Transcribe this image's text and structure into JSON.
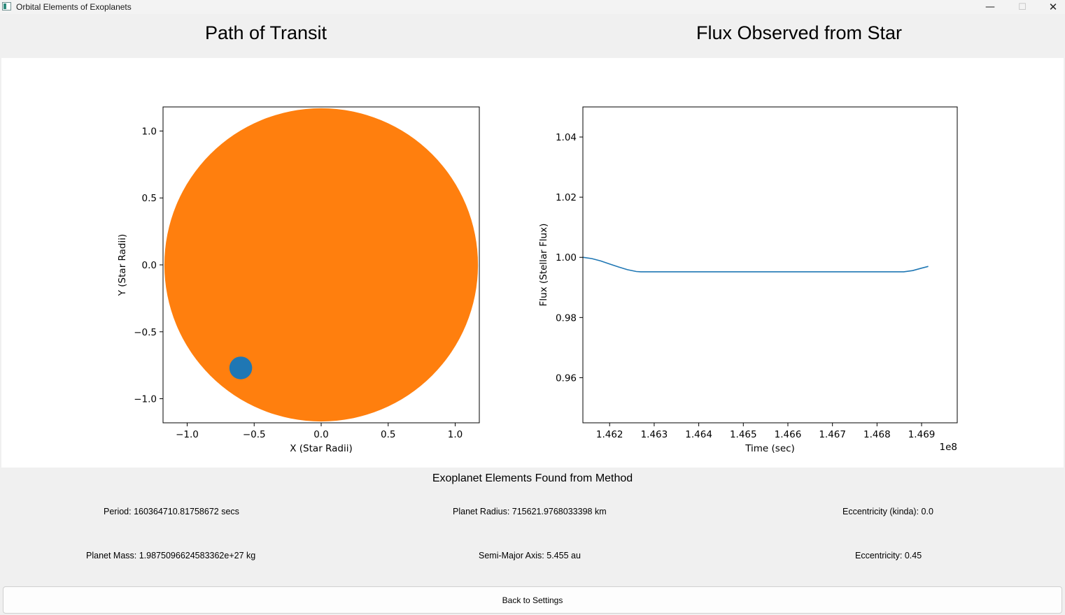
{
  "window": {
    "title": "Orbital Elements of Exoplanets",
    "minimize": "—",
    "maximize": "☐",
    "close": "✕"
  },
  "plots": {
    "left_title": "Path of Transit",
    "right_title": "Flux Observed from Star"
  },
  "chart_data": [
    {
      "type": "scatter",
      "xlabel": "X (Star Radii)",
      "ylabel": "Y (Star Radii)",
      "xlim": [
        -1.18,
        1.18
      ],
      "ylim": [
        -1.18,
        1.18
      ],
      "xticks": [
        -1.0,
        -0.5,
        0.0,
        0.5,
        1.0
      ],
      "xtick_labels": [
        "−1.0",
        "−0.5",
        "0.0",
        "0.5",
        "1.0"
      ],
      "yticks": [
        -1.0,
        -0.5,
        0.0,
        0.5,
        1.0
      ],
      "ytick_labels": [
        "−1.0",
        "−0.5",
        "0.0",
        "0.5",
        "1.0"
      ],
      "star": {
        "x": 0.0,
        "y": 0.0,
        "radius": 1.17,
        "color": "#ff7f0e"
      },
      "planet": {
        "x": -0.6,
        "y": -0.77,
        "radius": 0.085,
        "color": "#1f77b4"
      }
    },
    {
      "type": "line",
      "xlabel": "Time (sec)",
      "ylabel": "Flux (Stellar Flux)",
      "x_offset_label": "1e8",
      "xlim": [
        1.4614,
        1.4698
      ],
      "ylim": [
        0.945,
        1.05
      ],
      "xticks": [
        1.462,
        1.463,
        1.464,
        1.465,
        1.466,
        1.467,
        1.468,
        1.469
      ],
      "xtick_labels": [
        "1.462",
        "1.463",
        "1.464",
        "1.465",
        "1.466",
        "1.467",
        "1.468",
        "1.469"
      ],
      "yticks": [
        0.96,
        0.98,
        1.0,
        1.02,
        1.04
      ],
      "ytick_labels": [
        "0.96",
        "0.98",
        "1.00",
        "1.02",
        "1.04"
      ],
      "series": [
        {
          "color": "#1f77b4",
          "x": [
            1.4614,
            1.4616,
            1.4618,
            1.462,
            1.4622,
            1.4624,
            1.4626,
            1.4627,
            1.464,
            1.465,
            1.466,
            1.467,
            1.468,
            1.4686,
            1.4688,
            1.469,
            1.46915
          ],
          "y": [
            1.0,
            0.9996,
            0.9988,
            0.9978,
            0.9968,
            0.9959,
            0.9953,
            0.9952,
            0.9952,
            0.9952,
            0.9952,
            0.9952,
            0.9952,
            0.9952,
            0.9956,
            0.9964,
            0.997
          ]
        }
      ]
    }
  ],
  "results": {
    "section_title": "Exoplanet Elements Found from Method",
    "period": "Period: 160364710.81758672 secs",
    "planet_radius": "Planet Radius: 715621.9768033398 km",
    "eccentricity_kinda": "Eccentricity (kinda): 0.0",
    "planet_mass": "Planet Mass: 1.9875096624583362e+27 kg",
    "semi_major_axis": "Semi-Major Axis: 5.455 au",
    "eccentricity": "Eccentricity: 0.45"
  },
  "buttons": {
    "back": "Back to Settings"
  }
}
